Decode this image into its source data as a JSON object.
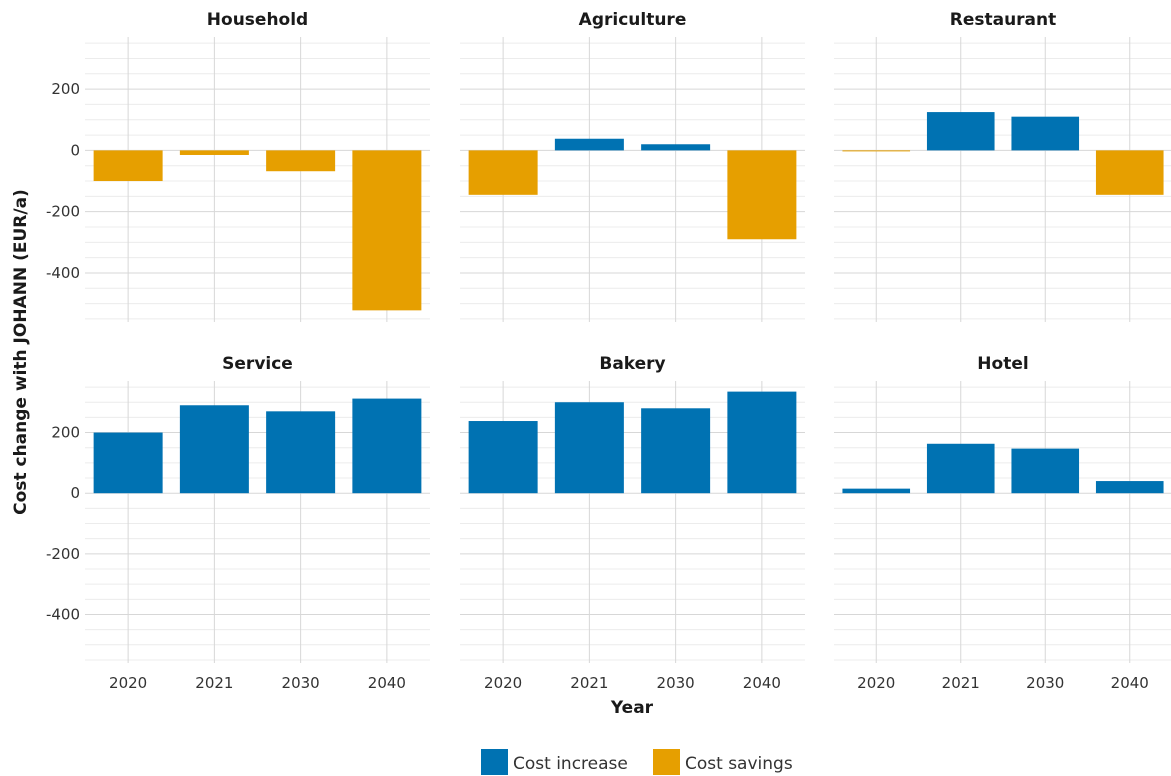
{
  "chart_data": {
    "type": "bar",
    "ylabel": "Cost change with JOHANN (EUR/a)",
    "xlabel": "Year",
    "categories": [
      "2020",
      "2021",
      "2030",
      "2040"
    ],
    "ylim": [
      -560,
      370
    ],
    "y_ticks": [
      -400,
      -200,
      0,
      200
    ],
    "y_tick_labels": [
      "-400",
      "-200",
      "0",
      "200"
    ],
    "grid": true,
    "legend": {
      "position": "bottom",
      "entries": [
        {
          "label": "Cost increase",
          "color": "#0072B2"
        },
        {
          "label": "Cost savings",
          "color": "#E69F00"
        }
      ]
    },
    "facets": [
      {
        "name": "Household",
        "values": [
          -100,
          -15,
          -68,
          -522
        ]
      },
      {
        "name": "Agriculture",
        "values": [
          -145,
          38,
          20,
          -290
        ]
      },
      {
        "name": "Restaurant",
        "values": [
          -2,
          125,
          110,
          -145
        ]
      },
      {
        "name": "Service",
        "values": [
          200,
          290,
          270,
          312
        ]
      },
      {
        "name": "Bakery",
        "values": [
          238,
          300,
          280,
          335
        ]
      },
      {
        "name": "Hotel",
        "values": [
          15,
          163,
          147,
          40
        ]
      }
    ]
  }
}
